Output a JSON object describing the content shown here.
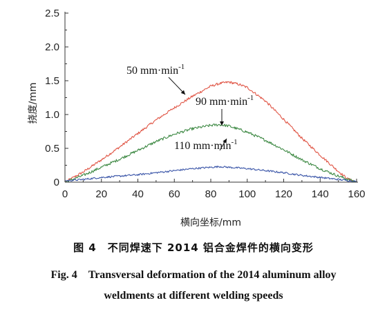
{
  "chart_data": {
    "type": "line",
    "xlabel": "横向坐标/mm",
    "ylabel": "挠度/mm",
    "xlim": [
      0,
      160
    ],
    "ylim": [
      0,
      2.5
    ],
    "x_ticks": [
      "0",
      "20",
      "40",
      "60",
      "80",
      "100",
      "120",
      "140",
      "160"
    ],
    "y_ticks": [
      "0",
      "0.5",
      "1.0",
      "1.5",
      "2.0",
      "2.5"
    ],
    "grid": false,
    "legend": "none",
    "series": [
      {
        "name": "50 mm·min-1",
        "color": "#e05545",
        "x": [
          0,
          10,
          20,
          30,
          40,
          50,
          60,
          70,
          80,
          85,
          90,
          95,
          100,
          110,
          120,
          130,
          140,
          150,
          155,
          160
        ],
        "y": [
          0.0,
          0.15,
          0.33,
          0.52,
          0.72,
          0.92,
          1.1,
          1.27,
          1.42,
          1.46,
          1.48,
          1.45,
          1.4,
          1.2,
          0.93,
          0.65,
          0.4,
          0.16,
          0.05,
          0.0
        ]
      },
      {
        "name": "90 mm·min-1",
        "color": "#3f8a45",
        "x": [
          0,
          10,
          20,
          30,
          40,
          50,
          60,
          70,
          80,
          85,
          90,
          100,
          110,
          120,
          130,
          140,
          150,
          160
        ],
        "y": [
          0.0,
          0.1,
          0.22,
          0.34,
          0.47,
          0.6,
          0.71,
          0.79,
          0.84,
          0.85,
          0.83,
          0.74,
          0.62,
          0.48,
          0.33,
          0.2,
          0.09,
          0.0
        ]
      },
      {
        "name": "110 mm·min-1",
        "color": "#3a55a8",
        "x": [
          0,
          10,
          20,
          30,
          40,
          50,
          60,
          70,
          80,
          85,
          90,
          100,
          110,
          120,
          130,
          140,
          150,
          160
        ],
        "y": [
          0.02,
          0.04,
          0.07,
          0.09,
          0.11,
          0.14,
          0.17,
          0.2,
          0.22,
          0.23,
          0.22,
          0.2,
          0.17,
          0.14,
          0.1,
          0.07,
          0.04,
          0.01
        ]
      }
    ],
    "annotations": [
      {
        "text": "50 mm·min",
        "sup": "-1",
        "series": 0,
        "x": 79,
        "y": 1.3
      },
      {
        "text": "90 mm·min",
        "sup": "-1",
        "series": 1,
        "x": 115,
        "y": 0.85
      },
      {
        "text": "110 mm·min",
        "sup": "-1",
        "series": 2,
        "x": 114,
        "y": 0.25
      }
    ]
  },
  "caption": {
    "cn": "图 4　不同焊速下 2014 铝合金焊件的横向变形",
    "en_line1": "Fig. 4　Transversal deformation of the 2014 aluminum alloy",
    "en_line2": "weldments at different welding speeds"
  }
}
